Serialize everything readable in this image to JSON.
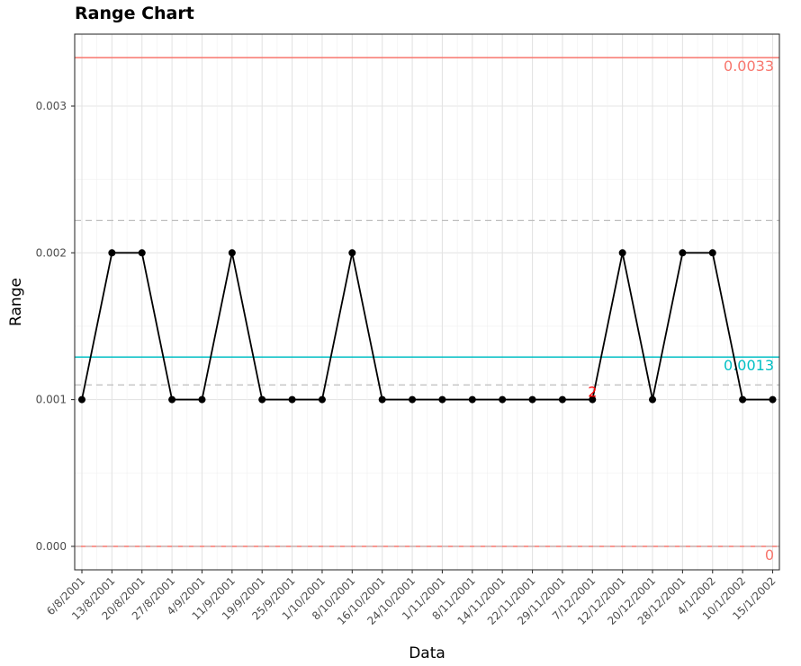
{
  "chart_data": {
    "type": "line",
    "title": "Range Chart",
    "xlabel": "Data",
    "ylabel": "Range",
    "ylim": [
      -0.00016,
      0.00349
    ],
    "y_ticks": [
      0.0,
      0.001,
      0.002,
      0.003
    ],
    "y_tick_labels": [
      "0.000",
      "0.001",
      "0.002",
      "0.003"
    ],
    "grid": true,
    "categories": [
      "6/8/2001",
      "13/8/2001",
      "20/8/2001",
      "27/8/2001",
      "4/9/2001",
      "11/9/2001",
      "19/9/2001",
      "25/9/2001",
      "1/10/2001",
      "8/10/2001",
      "16/10/2001",
      "24/10/2001",
      "1/11/2001",
      "8/11/2001",
      "14/11/2001",
      "22/11/2001",
      "29/11/2001",
      "7/12/2001",
      "12/12/2001",
      "20/12/2001",
      "28/12/2001",
      "4/1/2002",
      "10/1/2002",
      "15/1/2002"
    ],
    "series": [
      {
        "values": [
          0.001,
          0.002,
          0.002,
          0.001,
          0.001,
          0.002,
          0.001,
          0.001,
          0.001,
          0.002,
          0.001,
          0.001,
          0.001,
          0.001,
          0.001,
          0.001,
          0.001,
          0.001,
          0.002,
          0.001,
          0.002,
          0.002,
          0.001,
          0.001
        ],
        "color": "#000000"
      }
    ],
    "reference_lines": [
      {
        "value": 0.00333,
        "label": "0.0033",
        "color": "#f8766d",
        "style": "solid"
      },
      {
        "value": 0.00129,
        "label": "0.0013",
        "color": "#00bfc4",
        "style": "solid"
      },
      {
        "value": 0.0,
        "label": "0",
        "color": "#f8766d",
        "style": "solid"
      },
      {
        "value": 0.00222,
        "label": "",
        "color": "#bebebe",
        "style": "dashed"
      },
      {
        "value": 0.0011,
        "label": "",
        "color": "#bebebe",
        "style": "dashed"
      },
      {
        "value": 0.0,
        "label": "",
        "color": "#bebebe",
        "style": "dashed"
      }
    ],
    "annotations": [
      {
        "category": "7/12/2001",
        "text": "2",
        "color": "#ff0000"
      }
    ]
  }
}
